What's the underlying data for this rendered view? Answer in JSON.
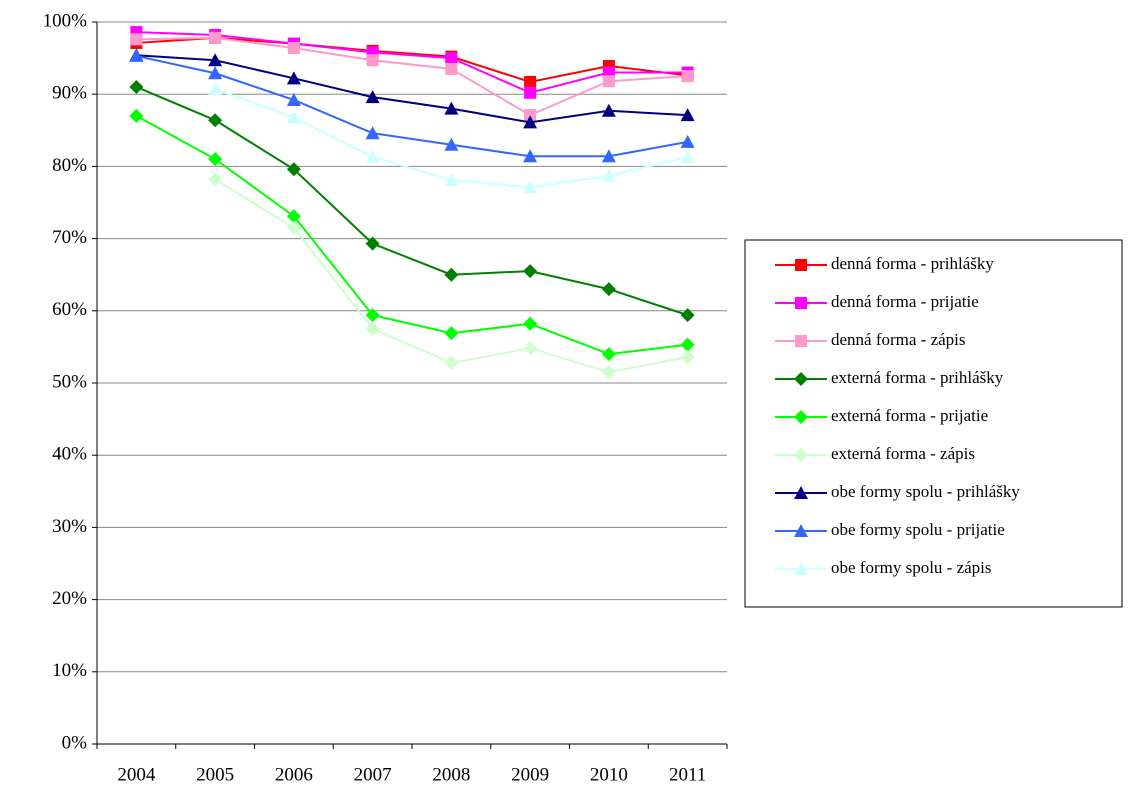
{
  "chart_data": {
    "type": "line",
    "categories": [
      "2004",
      "2005",
      "2006",
      "2007",
      "2008",
      "2009",
      "2010",
      "2011"
    ],
    "ylim": [
      0,
      100
    ],
    "yticks": [
      {
        "value": 0,
        "label": "0%"
      },
      {
        "value": 10,
        "label": "10%"
      },
      {
        "value": 20,
        "label": "20%"
      },
      {
        "value": 30,
        "label": "30%"
      },
      {
        "value": 40,
        "label": "40%"
      },
      {
        "value": 50,
        "label": "50%"
      },
      {
        "value": 60,
        "label": "60%"
      },
      {
        "value": 70,
        "label": "70%"
      },
      {
        "value": 80,
        "label": "80%"
      },
      {
        "value": 90,
        "label": "90%"
      },
      {
        "value": 100,
        "label": "100%"
      }
    ],
    "grid": true,
    "legend": "right",
    "series": [
      {
        "name": "denná forma - prihlášky",
        "color": "#ff0000",
        "marker": "square",
        "values": [
          97.1,
          97.8,
          97.0,
          96.0,
          95.2,
          91.7,
          93.9,
          92.6
        ]
      },
      {
        "name": "denná forma - prijatie",
        "color": "#ff00ff",
        "marker": "square",
        "values": [
          98.6,
          98.2,
          97.0,
          95.8,
          95.0,
          90.2,
          93.0,
          93.0
        ]
      },
      {
        "name": "denná forma - zápis",
        "color": "#ff99cc",
        "marker": "square",
        "values": [
          97.6,
          97.8,
          96.4,
          94.7,
          93.5,
          87.1,
          91.8,
          92.5
        ]
      },
      {
        "name": "externá forma - prihlášky",
        "color": "#008000",
        "marker": "diamond",
        "values": [
          91.0,
          86.4,
          79.6,
          69.3,
          65.0,
          65.5,
          63.0,
          59.4
        ]
      },
      {
        "name": "externá forma - prijatie",
        "color": "#00ff00",
        "marker": "diamond",
        "values": [
          87.0,
          81.0,
          73.1,
          59.4,
          56.9,
          58.2,
          54.0,
          55.3
        ]
      },
      {
        "name": "externá forma - zápis",
        "color": "#ccffcc",
        "marker": "diamond",
        "values": [
          null,
          78.2,
          71.5,
          57.5,
          52.8,
          54.8,
          51.5,
          53.6
        ]
      },
      {
        "name": "obe formy spolu - prihlášky",
        "color": "#000080",
        "marker": "triangle",
        "values": [
          95.4,
          94.7,
          92.2,
          89.6,
          88.0,
          86.1,
          87.7,
          87.1
        ]
      },
      {
        "name": "obe formy spolu - prijatie",
        "color": "#3366ff",
        "marker": "triangle",
        "values": [
          95.3,
          92.9,
          89.2,
          84.6,
          83.0,
          81.4,
          81.4,
          83.4
        ]
      },
      {
        "name": "obe formy spolu - zápis",
        "color": "#ccffff",
        "marker": "triangle",
        "values": [
          null,
          90.7,
          86.8,
          81.3,
          78.1,
          77.1,
          78.7,
          81.3
        ]
      }
    ]
  }
}
